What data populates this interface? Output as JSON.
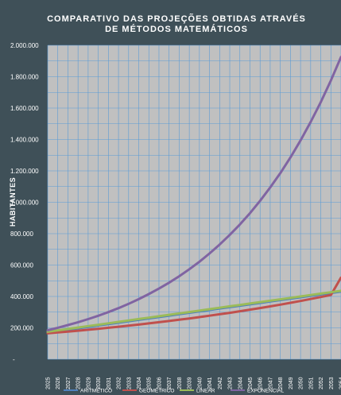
{
  "chart_data": {
    "type": "line",
    "title": [
      "COMPARATIVO DAS PROJEÇÕES OBTIDAS ATRAVÉS",
      "DE MÉTODOS MATEMÁTICOS"
    ],
    "ylabel": "HABITANTES",
    "xlabel": "",
    "ylim": [
      0,
      2000000
    ],
    "yticks": [
      {
        "value": 0,
        "label": "-"
      },
      {
        "value": 200000,
        "label": "200.000"
      },
      {
        "value": 400000,
        "label": "400.000"
      },
      {
        "value": 600000,
        "label": "600.000"
      },
      {
        "value": 800000,
        "label": "800.000"
      },
      {
        "value": 1000000,
        "label": "1.000.000"
      },
      {
        "value": 1200000,
        "label": "1.200.000"
      },
      {
        "value": 1400000,
        "label": "1.400.000"
      },
      {
        "value": 1600000,
        "label": "1.600.000"
      },
      {
        "value": 1800000,
        "label": "1.800.000"
      },
      {
        "value": 2000000,
        "label": "2.000.000"
      }
    ],
    "x": [
      "2025",
      "2026",
      "2027",
      "2028",
      "2029",
      "2030",
      "2031",
      "2032",
      "2033",
      "2034",
      "2035",
      "2036",
      "2037",
      "2038",
      "2039",
      "2040",
      "2041",
      "2042",
      "2043",
      "2044",
      "2045",
      "2046",
      "2047",
      "2048",
      "2049",
      "2050",
      "2051",
      "2052",
      "2053",
      "2054"
    ],
    "grid": true,
    "legend_position": "bottom",
    "series": [
      {
        "name": "ARITMÉTICO",
        "color": "#4f81bd",
        "values": [
          170000,
          179000,
          188000,
          197000,
          206000,
          215000,
          224000,
          233000,
          242000,
          251000,
          260000,
          269000,
          278000,
          287000,
          296000,
          305000,
          314000,
          323000,
          332000,
          341000,
          350000,
          359000,
          368000,
          377000,
          386000,
          395000,
          404000,
          413000,
          422000,
          431000
        ]
      },
      {
        "name": "GEOMÉTRICO",
        "color": "#c0504d",
        "values": [
          165000,
          170400,
          176000,
          181800,
          187800,
          194000,
          200400,
          207000,
          213900,
          220900,
          228200,
          235700,
          243500,
          251500,
          259800,
          268400,
          277300,
          286400,
          295900,
          305600,
          315700,
          326100,
          336900,
          348000,
          359500,
          371300,
          383600,
          396300,
          409300,
          520000
        ]
      },
      {
        "name": "LINEAR",
        "color": "#9bbb59",
        "values": [
          175000,
          184000,
          193000,
          202000,
          211000,
          220000,
          229000,
          238000,
          247000,
          256000,
          265000,
          274000,
          283000,
          292000,
          301000,
          310000,
          319000,
          328000,
          337000,
          346000,
          355000,
          364000,
          373000,
          382000,
          391000,
          400000,
          409000,
          418000,
          427000,
          436000
        ]
      },
      {
        "name": "EXPONENCIAL",
        "color": "#8064a2",
        "values": [
          185000,
          200600,
          217500,
          235800,
          255600,
          277100,
          300400,
          325700,
          353100,
          382800,
          415000,
          449900,
          487800,
          528800,
          573300,
          621500,
          673800,
          730500,
          792000,
          858600,
          930800,
          1009100,
          1094000,
          1186000,
          1285800,
          1394000,
          1511200,
          1638400,
          1776200,
          1925600
        ]
      }
    ]
  }
}
